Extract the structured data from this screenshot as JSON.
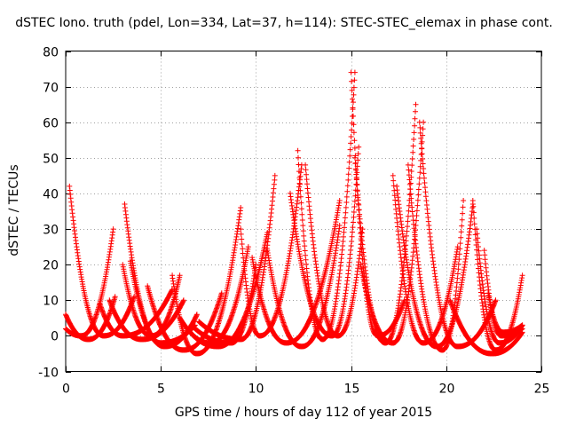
{
  "chart_data": {
    "type": "scatter",
    "title": "dSTEC Iono. truth (pdel, Lon=334, Lat=37, h=114): STEC-STEC_elemax in phase cont.",
    "xlabel": "GPS time / hours of day 112 of year 2015",
    "ylabel": "dSTEC  / TECUs",
    "xlim": [
      0,
      25
    ],
    "ylim": [
      -10,
      80
    ],
    "xticks": [
      "0",
      "5",
      "10",
      "15",
      "20",
      "25"
    ],
    "yticks": [
      "-10",
      "0",
      "10",
      "20",
      "30",
      "40",
      "50",
      "60",
      "70",
      "80"
    ],
    "grid": true,
    "marker": "+",
    "color": "#ff0000",
    "passes": [
      {
        "start": 0.2,
        "end": 3.6,
        "min_time": 2.0,
        "min_value": 0,
        "start_value": 42,
        "end_value": 11
      },
      {
        "start": 0.0,
        "end": 2.6,
        "min_time": 1.2,
        "min_value": -1,
        "start_value": 6,
        "end_value": 11
      },
      {
        "start": 0.0,
        "end": 2.5,
        "min_time": 0.8,
        "min_value": 0,
        "start_value": 2,
        "end_value": 30
      },
      {
        "start": 1.8,
        "end": 5.6,
        "min_time": 3.0,
        "min_value": 0,
        "start_value": 9,
        "end_value": 13
      },
      {
        "start": 2.3,
        "end": 6.2,
        "min_time": 4.0,
        "min_value": -1,
        "start_value": 10,
        "end_value": 10
      },
      {
        "start": 3.1,
        "end": 6.8,
        "min_time": 5.0,
        "min_value": -2,
        "start_value": 37,
        "end_value": 3
      },
      {
        "start": 3.4,
        "end": 6.9,
        "min_time": 5.2,
        "min_value": -3,
        "start_value": 21,
        "end_value": 6
      },
      {
        "start": 3.0,
        "end": 6.0,
        "min_time": 4.5,
        "min_value": 0,
        "start_value": 20,
        "end_value": 17
      },
      {
        "start": 4.3,
        "end": 8.2,
        "min_time": 6.2,
        "min_value": -4,
        "start_value": 14,
        "end_value": 12
      },
      {
        "start": 5.6,
        "end": 9.2,
        "min_time": 6.9,
        "min_value": -5,
        "start_value": 17,
        "end_value": 36
      },
      {
        "start": 6.0,
        "end": 10.6,
        "min_time": 8.0,
        "min_value": -3,
        "start_value": 5,
        "end_value": 29
      },
      {
        "start": 6.4,
        "end": 9.6,
        "min_time": 7.6,
        "min_value": -2,
        "start_value": 2,
        "end_value": 25
      },
      {
        "start": 6.6,
        "end": 10.0,
        "min_time": 8.7,
        "min_value": -2,
        "start_value": 3,
        "end_value": 20
      },
      {
        "start": 7.0,
        "end": 11.0,
        "min_time": 9.2,
        "min_value": -1,
        "start_value": 4,
        "end_value": 45
      },
      {
        "start": 9.2,
        "end": 12.4,
        "min_time": 10.2,
        "min_value": 0,
        "start_value": 30,
        "end_value": 48
      },
      {
        "start": 9.8,
        "end": 14.4,
        "min_time": 11.6,
        "min_value": -2,
        "start_value": 22,
        "end_value": 38
      },
      {
        "start": 10.6,
        "end": 14.4,
        "min_time": 12.4,
        "min_value": -3,
        "start_value": 24,
        "end_value": 31
      },
      {
        "start": 12.2,
        "end": 15.2,
        "min_time": 13.5,
        "min_value": -1,
        "start_value": 52,
        "end_value": 74
      },
      {
        "start": 11.8,
        "end": 15.4,
        "min_time": 14.0,
        "min_value": 0,
        "start_value": 40,
        "end_value": 53
      },
      {
        "start": 12.6,
        "end": 15.6,
        "min_time": 14.3,
        "min_value": 0,
        "start_value": 48,
        "end_value": 30
      },
      {
        "start": 15.0,
        "end": 17.8,
        "min_time": 16.4,
        "min_value": 0,
        "start_value": 74,
        "end_value": 10
      },
      {
        "start": 15.2,
        "end": 18.4,
        "min_time": 16.8,
        "min_value": -2,
        "start_value": 50,
        "end_value": 65
      },
      {
        "start": 15.5,
        "end": 18.8,
        "min_time": 17.2,
        "min_value": -2,
        "start_value": 20,
        "end_value": 60
      },
      {
        "start": 17.2,
        "end": 20.6,
        "min_time": 18.8,
        "min_value": -2,
        "start_value": 45,
        "end_value": 25
      },
      {
        "start": 17.4,
        "end": 21.4,
        "min_time": 19.5,
        "min_value": -3,
        "start_value": 42,
        "end_value": 37
      },
      {
        "start": 18.0,
        "end": 20.9,
        "min_time": 19.8,
        "min_value": -4,
        "start_value": 48,
        "end_value": 38
      },
      {
        "start": 18.6,
        "end": 22.6,
        "min_time": 20.6,
        "min_value": -3,
        "start_value": 60,
        "end_value": 10
      },
      {
        "start": 20.2,
        "end": 24.0,
        "min_time": 22.4,
        "min_value": -5,
        "start_value": 10,
        "end_value": 1
      },
      {
        "start": 21.4,
        "end": 24.0,
        "min_time": 22.6,
        "min_value": -4,
        "start_value": 38,
        "end_value": 17
      },
      {
        "start": 21.6,
        "end": 24.0,
        "min_time": 22.8,
        "min_value": -2,
        "start_value": 30,
        "end_value": 3
      },
      {
        "start": 22.0,
        "end": 24.0,
        "min_time": 22.9,
        "min_value": 0,
        "start_value": 24,
        "end_value": 2
      },
      {
        "start": 22.2,
        "end": 24.0,
        "min_time": 23.0,
        "min_value": 1,
        "start_value": 12,
        "end_value": 3
      }
    ]
  }
}
